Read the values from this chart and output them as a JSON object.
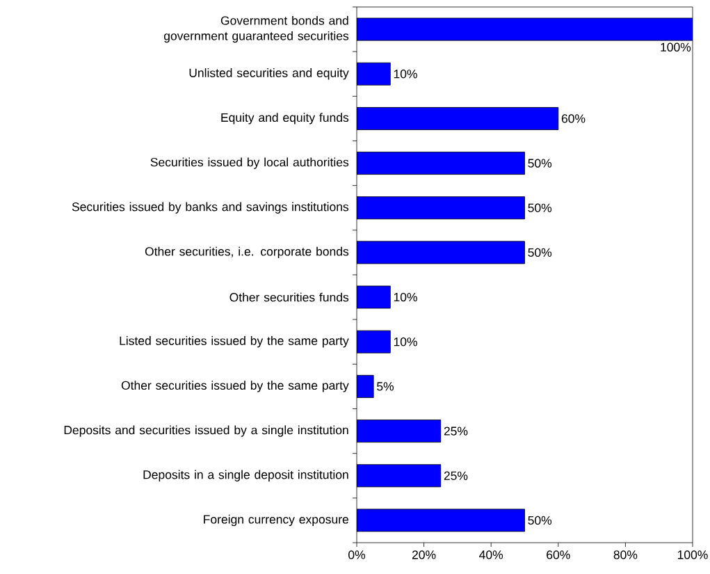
{
  "chart_data": {
    "type": "bar",
    "orientation": "horizontal",
    "categories": [
      "Government bonds and government guaranteed securities",
      "Unlisted securities and equity",
      "Equity and equity funds",
      "Securities issued by local authorities",
      "Securities issued by banks and savings institutions",
      "Other securities, i.e. corporate bonds",
      "Other securities funds",
      "Listed securities issued by the same party",
      "Other securities issued by the same party",
      "Deposits and securities issued by a single institution",
      "Deposits in a single deposit institution",
      "Foreign currency exposure"
    ],
    "values": [
      100,
      10,
      60,
      50,
      50,
      50,
      10,
      10,
      5,
      25,
      25,
      50
    ],
    "value_labels": [
      "100%",
      "10%",
      "60%",
      "50%",
      "50%",
      "50%",
      "10%",
      "10%",
      "5%",
      "25%",
      "25%",
      "50%"
    ],
    "color": "#0000ff",
    "xlim": [
      0,
      100
    ],
    "xticks": [
      {
        "value": 0,
        "label": "0%"
      },
      {
        "value": 20,
        "label": "20%"
      },
      {
        "value": 40,
        "label": "40%"
      },
      {
        "value": 60,
        "label": "60%"
      },
      {
        "value": 80,
        "label": "80%"
      },
      {
        "value": 100,
        "label": "100%"
      }
    ]
  }
}
